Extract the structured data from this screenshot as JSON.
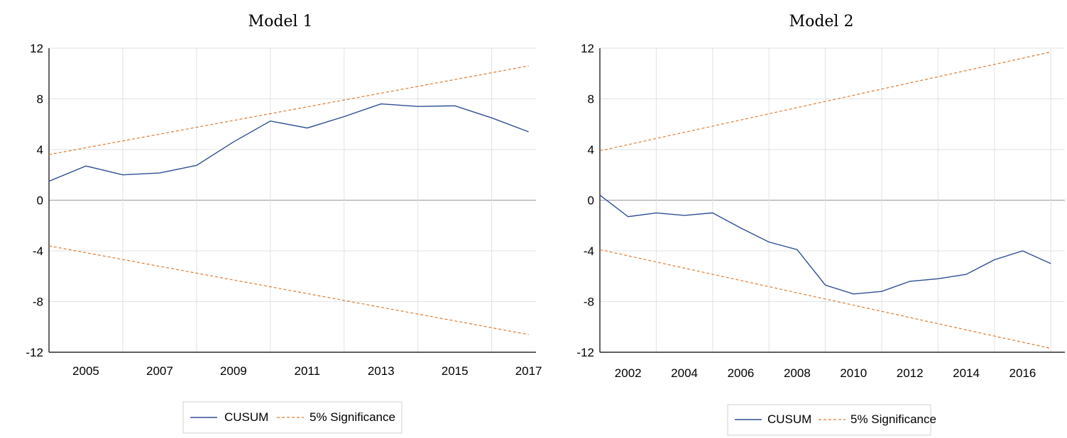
{
  "colors": {
    "cusum": "#2e4e94",
    "significance": "#e07a2f",
    "grid": "#e2e2e2",
    "zero": "#aaaaaa",
    "axis": "#000000"
  },
  "legend": {
    "cusum_label": "CUSUM",
    "significance_label": "5% Significance"
  },
  "chart_data": [
    {
      "type": "line",
      "title": "Model 1",
      "xlabel": "",
      "ylabel": "",
      "xlim": [
        2004,
        2017.2
      ],
      "ylim": [
        -12,
        12
      ],
      "yticks": [
        12,
        8,
        4,
        0,
        -4,
        -8,
        -12
      ],
      "ytick_labels": [
        "12",
        "8",
        "4",
        "0",
        "-4",
        "-8",
        "-12"
      ],
      "xticks": [
        2005,
        2007,
        2009,
        2011,
        2013,
        2015,
        2017
      ],
      "xtick_labels": [
        "2005",
        "2007",
        "2009",
        "2011",
        "2013",
        "2015",
        "2017"
      ],
      "vgrid": [
        2004,
        2006,
        2008,
        2010,
        2012,
        2014,
        2016
      ],
      "grid": true,
      "legend_position": "bottom-center",
      "series": [
        {
          "name": "CUSUM",
          "style": "solid",
          "x": [
            2004,
            2005,
            2006,
            2007,
            2008,
            2009,
            2010,
            2011,
            2012,
            2013,
            2014,
            2015,
            2016,
            2017
          ],
          "y": [
            1.5,
            2.7,
            2.0,
            2.15,
            2.75,
            4.6,
            6.25,
            5.7,
            6.6,
            7.6,
            7.4,
            7.45,
            6.5,
            5.4
          ]
        },
        {
          "name": "5% Significance",
          "style": "dashed",
          "x": [
            2004,
            2017
          ],
          "y": [
            3.6,
            10.6
          ]
        },
        {
          "name": "5% Significance",
          "style": "dashed",
          "x": [
            2004,
            2017
          ],
          "y": [
            -3.6,
            -10.6
          ]
        }
      ]
    },
    {
      "type": "line",
      "title": "Model 2",
      "xlabel": "",
      "ylabel": "",
      "xlim": [
        2001,
        2017.5
      ],
      "ylim": [
        -12,
        12
      ],
      "yticks": [
        12,
        8,
        4,
        0,
        -4,
        -8,
        -12
      ],
      "ytick_labels": [
        "12",
        "8",
        "4",
        "0",
        "-4",
        "-8",
        "-12"
      ],
      "xticks": [
        2002,
        2004,
        2006,
        2008,
        2010,
        2012,
        2014,
        2016
      ],
      "xtick_labels": [
        "2002",
        "2004",
        "2006",
        "2008",
        "2010",
        "2012",
        "2014",
        "2016"
      ],
      "vgrid": [
        2001,
        2003,
        2005,
        2007,
        2009,
        2011,
        2013,
        2015,
        2017
      ],
      "grid": true,
      "legend_position": "bottom-center",
      "series": [
        {
          "name": "CUSUM",
          "style": "solid",
          "x": [
            2001,
            2002,
            2003,
            2004,
            2005,
            2006,
            2007,
            2008,
            2009,
            2010,
            2011,
            2012,
            2013,
            2014,
            2015,
            2016,
            2017
          ],
          "y": [
            0.4,
            -1.3,
            -1.0,
            -1.2,
            -1.0,
            -2.2,
            -3.3,
            -3.9,
            -6.7,
            -7.4,
            -7.2,
            -6.4,
            -6.2,
            -5.85,
            -4.7,
            -4.0,
            -5.0
          ]
        },
        {
          "name": "5% Significance",
          "style": "dashed",
          "x": [
            2001,
            2017
          ],
          "y": [
            3.9,
            11.7
          ]
        },
        {
          "name": "5% Significance",
          "style": "dashed",
          "x": [
            2001,
            2017
          ],
          "y": [
            -3.9,
            -11.7
          ]
        }
      ]
    }
  ]
}
